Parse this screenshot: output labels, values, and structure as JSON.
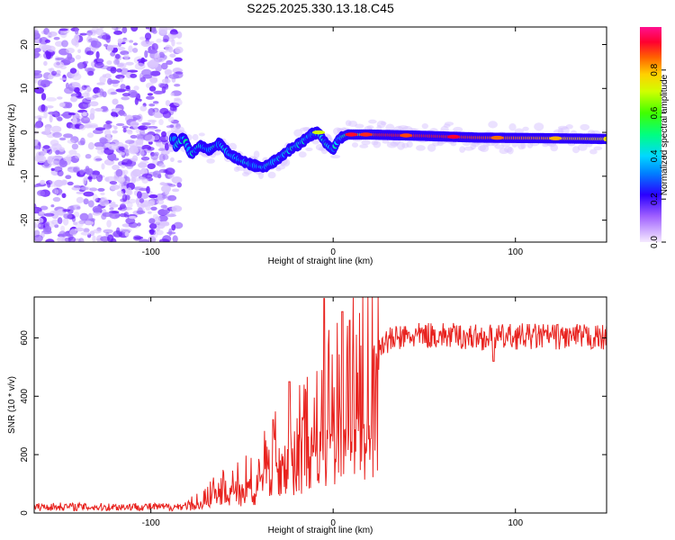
{
  "title": "S225.2025.330.13.18.C45",
  "colors": {
    "snr_line": "#e8221e",
    "axis": "#000000",
    "background": "#ffffff",
    "noise_purple": "#7a2cff"
  },
  "chart_data": [
    {
      "type": "heatmap",
      "ylabel": "Frequency (Hz)",
      "xlabel": "Height of straight line (km)",
      "xlim": [
        -164,
        150
      ],
      "ylim": [
        -25,
        24
      ],
      "xticks": [
        -100,
        0,
        100
      ],
      "yticks": [
        -20,
        -10,
        0,
        10,
        20
      ],
      "ridge": [
        {
          "x": -87,
          "y": -3.5
        },
        {
          "x": -82,
          "y": -1
        },
        {
          "x": -78,
          "y": -5
        },
        {
          "x": -73,
          "y": -3
        },
        {
          "x": -68,
          "y": -4
        },
        {
          "x": -62,
          "y": -2.5
        },
        {
          "x": -57,
          "y": -5
        },
        {
          "x": -50,
          "y": -6.5
        },
        {
          "x": -44,
          "y": -7.5
        },
        {
          "x": -38,
          "y": -8
        },
        {
          "x": -30,
          "y": -6
        },
        {
          "x": -24,
          "y": -4
        },
        {
          "x": -18,
          "y": -2.5
        },
        {
          "x": -12,
          "y": -0.5
        },
        {
          "x": -8,
          "y": 0
        },
        {
          "x": -4,
          "y": -2.5
        },
        {
          "x": 0,
          "y": -4
        },
        {
          "x": 3,
          "y": -1.5
        },
        {
          "x": 8,
          "y": -0.5
        },
        {
          "x": 20,
          "y": -0.5
        },
        {
          "x": 50,
          "y": -0.8
        },
        {
          "x": 80,
          "y": -1.2
        },
        {
          "x": 110,
          "y": -1.3
        },
        {
          "x": 150,
          "y": -1.5
        }
      ],
      "colorbar": {
        "label": "Normalized spectral amplitude",
        "ticks": [
          0.0,
          0.2,
          0.4,
          0.6,
          0.8
        ],
        "tick_labels": [
          "0.0",
          "0.2",
          "0.4",
          "0.6",
          "0.8"
        ],
        "range": [
          0,
          1
        ],
        "stops": [
          {
            "v": 0.0,
            "c": "#f6eaff"
          },
          {
            "v": 0.12,
            "c": "#a060ff"
          },
          {
            "v": 0.22,
            "c": "#2a00ff"
          },
          {
            "v": 0.32,
            "c": "#0080ff"
          },
          {
            "v": 0.4,
            "c": "#00d8ff"
          },
          {
            "v": 0.5,
            "c": "#00ff80"
          },
          {
            "v": 0.6,
            "c": "#40ff00"
          },
          {
            "v": 0.7,
            "c": "#d0ff00"
          },
          {
            "v": 0.78,
            "c": "#ffd000"
          },
          {
            "v": 0.86,
            "c": "#ff6000"
          },
          {
            "v": 0.93,
            "c": "#ff0030"
          },
          {
            "v": 1.0,
            "c": "#ff1090"
          }
        ]
      }
    },
    {
      "type": "line",
      "ylabel": "SNR (10 * v/v)",
      "xlabel": "Height of straight line (km)",
      "xlim": [
        -164,
        150
      ],
      "ylim": [
        0,
        740
      ],
      "xticks": [
        -100,
        0,
        100
      ],
      "yticks": [
        0,
        200,
        400,
        600
      ],
      "series": [
        {
          "name": "SNR",
          "x": [
            -164,
            -150,
            -130,
            -110,
            -90,
            -80,
            -76,
            -70,
            -64,
            -58,
            -52,
            -46,
            -40,
            -34,
            -28,
            -22,
            -16,
            -12,
            -8,
            -4,
            0,
            4,
            8,
            12,
            16,
            20,
            25,
            30,
            36,
            44,
            55,
            70,
            88,
            100,
            120,
            150
          ],
          "values": [
            20,
            22,
            20,
            22,
            20,
            25,
            40,
            60,
            80,
            90,
            110,
            120,
            150,
            180,
            230,
            260,
            280,
            300,
            330,
            360,
            380,
            420,
            450,
            500,
            530,
            560,
            580,
            590,
            600,
            605,
            610,
            605,
            600,
            605,
            605,
            600
          ]
        }
      ],
      "spikes": [
        {
          "x": -5,
          "y": 735
        },
        {
          "x": 5,
          "y": 690
        },
        {
          "x": 9,
          "y": 660
        },
        {
          "x": -24,
          "y": 450
        },
        {
          "x": -33,
          "y": 320
        },
        {
          "x": 88,
          "y": 520
        }
      ]
    }
  ]
}
